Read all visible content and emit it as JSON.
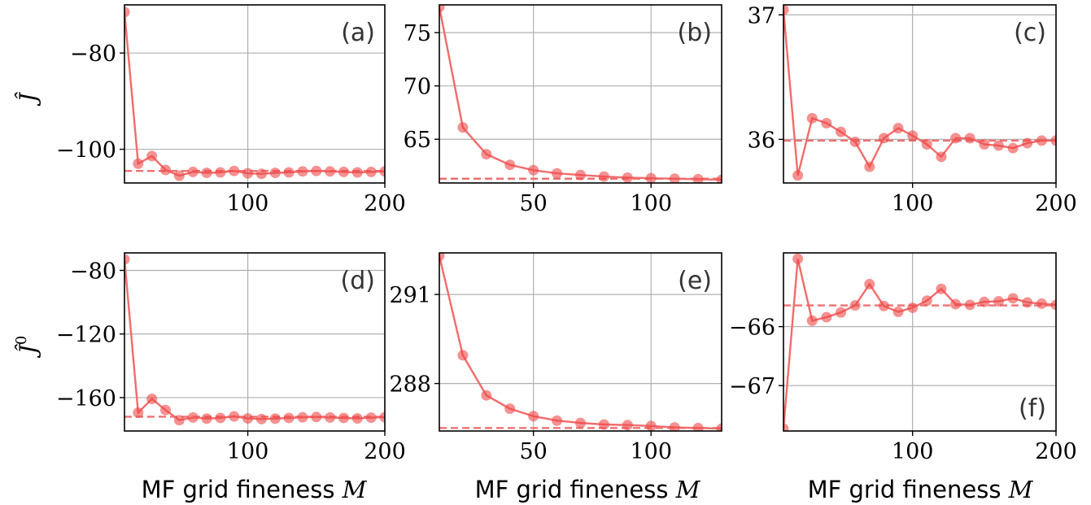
{
  "figure": {
    "x_label_text": "MF grid fineness ",
    "x_label_var": "M",
    "y_labels": [
      {
        "base": "Ĵ",
        "sup": ""
      },
      {
        "base": "Ĵ",
        "sup": "0"
      }
    ]
  },
  "style": {
    "line_color": "#f26b6b",
    "marker_color": "#ee4848",
    "ref_color": "#ef7070",
    "grid_color": "#b0b0b0"
  },
  "chart_data": [
    {
      "type": "line",
      "panel": "(a)",
      "label_pos": "top-right",
      "xlim": [
        10,
        200
      ],
      "ylim": [
        -107,
        -70
      ],
      "xticks": [
        100,
        200
      ],
      "xtick_labels": [
        "100",
        "200"
      ],
      "yticks": [
        -80,
        -100
      ],
      "ytick_labels": [
        "−80",
        "−100"
      ],
      "grid": true,
      "reference": -104.5,
      "x": [
        10,
        20,
        30,
        40,
        50,
        60,
        70,
        80,
        90,
        100,
        110,
        120,
        130,
        140,
        150,
        160,
        170,
        180,
        190,
        200
      ],
      "y": [
        -71.5,
        -103.0,
        -101.4,
        -104.3,
        -105.5,
        -104.7,
        -104.9,
        -104.8,
        -104.5,
        -105.0,
        -105.1,
        -104.9,
        -104.8,
        -104.6,
        -104.5,
        -104.6,
        -104.7,
        -104.8,
        -104.7,
        -104.6
      ]
    },
    {
      "type": "line",
      "panel": "(b)",
      "label_pos": "top-right",
      "xlim": [
        10,
        130
      ],
      "ylim": [
        60.9,
        77.6
      ],
      "xticks": [
        50,
        100
      ],
      "xtick_labels": [
        "50",
        "100"
      ],
      "yticks": [
        75,
        70,
        65
      ],
      "ytick_labels": [
        "75",
        "70",
        "65"
      ],
      "grid": true,
      "reference": 61.3,
      "x": [
        10,
        20,
        30,
        40,
        50,
        60,
        70,
        80,
        90,
        100,
        110,
        120,
        130
      ],
      "y": [
        77.4,
        66.1,
        63.6,
        62.6,
        62.1,
        61.8,
        61.65,
        61.5,
        61.4,
        61.35,
        61.3,
        61.25,
        61.2
      ]
    },
    {
      "type": "line",
      "panel": "(c)",
      "label_pos": "top-right",
      "xlim": [
        10,
        200
      ],
      "ylim": [
        35.65,
        37.08
      ],
      "xticks": [
        100,
        200
      ],
      "xtick_labels": [
        "100",
        "200"
      ],
      "yticks": [
        37,
        36
      ],
      "ytick_labels": [
        "37",
        "36"
      ],
      "grid": true,
      "reference": 35.99,
      "x": [
        10,
        20,
        30,
        40,
        50,
        60,
        70,
        80,
        90,
        100,
        110,
        120,
        130,
        140,
        150,
        160,
        170,
        180,
        190,
        200
      ],
      "y": [
        37.04,
        35.71,
        36.17,
        36.13,
        36.06,
        35.98,
        35.78,
        36.01,
        36.09,
        36.03,
        35.96,
        35.86,
        36.01,
        36.01,
        35.96,
        35.95,
        35.93,
        35.97,
        35.99,
        35.99
      ]
    },
    {
      "type": "line",
      "panel": "(d)",
      "label_pos": "top-right",
      "xlim": [
        10,
        200
      ],
      "ylim": [
        -181,
        -69
      ],
      "xticks": [
        100,
        200
      ],
      "xtick_labels": [
        "100",
        "200"
      ],
      "yticks": [
        -80,
        -120,
        -160
      ],
      "ytick_labels": [
        "−80",
        "−120",
        "−160"
      ],
      "grid": true,
      "reference": -172,
      "x": [
        10,
        20,
        30,
        40,
        50,
        60,
        70,
        80,
        90,
        100,
        110,
        120,
        130,
        140,
        150,
        160,
        170,
        180,
        190,
        200
      ],
      "y": [
        -73,
        -169.5,
        -160.8,
        -167.8,
        -174.2,
        -172.5,
        -173.2,
        -172.8,
        -171.8,
        -173.1,
        -173.5,
        -173.2,
        -172.8,
        -172.4,
        -172.2,
        -172.5,
        -172.8,
        -173.1,
        -172.6,
        -172.3
      ]
    },
    {
      "type": "line",
      "panel": "(e)",
      "label_pos": "top-right",
      "xlim": [
        10,
        130
      ],
      "ylim": [
        286.4,
        292.4
      ],
      "xticks": [
        50,
        100
      ],
      "xtick_labels": [
        "50",
        "100"
      ],
      "yticks": [
        291,
        288
      ],
      "ytick_labels": [
        "291",
        "288"
      ],
      "grid": true,
      "reference": 286.5,
      "x": [
        10,
        20,
        30,
        40,
        50,
        60,
        70,
        80,
        90,
        100,
        110,
        120,
        130
      ],
      "y": [
        292.3,
        288.95,
        287.6,
        287.15,
        286.9,
        286.75,
        286.67,
        286.62,
        286.6,
        286.57,
        286.52,
        286.5,
        286.48
      ]
    },
    {
      "type": "line",
      "panel": "(f)",
      "label_pos": "bottom-right",
      "xlim": [
        10,
        200
      ],
      "ylim": [
        -67.77,
        -64.75
      ],
      "xticks": [
        100,
        200
      ],
      "xtick_labels": [
        "100",
        "200"
      ],
      "yticks": [
        -66,
        -67
      ],
      "ytick_labels": [
        "−66",
        "−67"
      ],
      "grid": true,
      "reference": -65.64,
      "x": [
        10,
        20,
        30,
        40,
        50,
        60,
        70,
        80,
        90,
        100,
        110,
        120,
        130,
        140,
        150,
        160,
        170,
        180,
        190,
        200
      ],
      "y": [
        -67.73,
        -64.85,
        -65.9,
        -65.84,
        -65.76,
        -65.64,
        -65.28,
        -65.65,
        -65.75,
        -65.68,
        -65.56,
        -65.36,
        -65.62,
        -65.63,
        -65.58,
        -65.57,
        -65.52,
        -65.59,
        -65.61,
        -65.63
      ]
    }
  ]
}
